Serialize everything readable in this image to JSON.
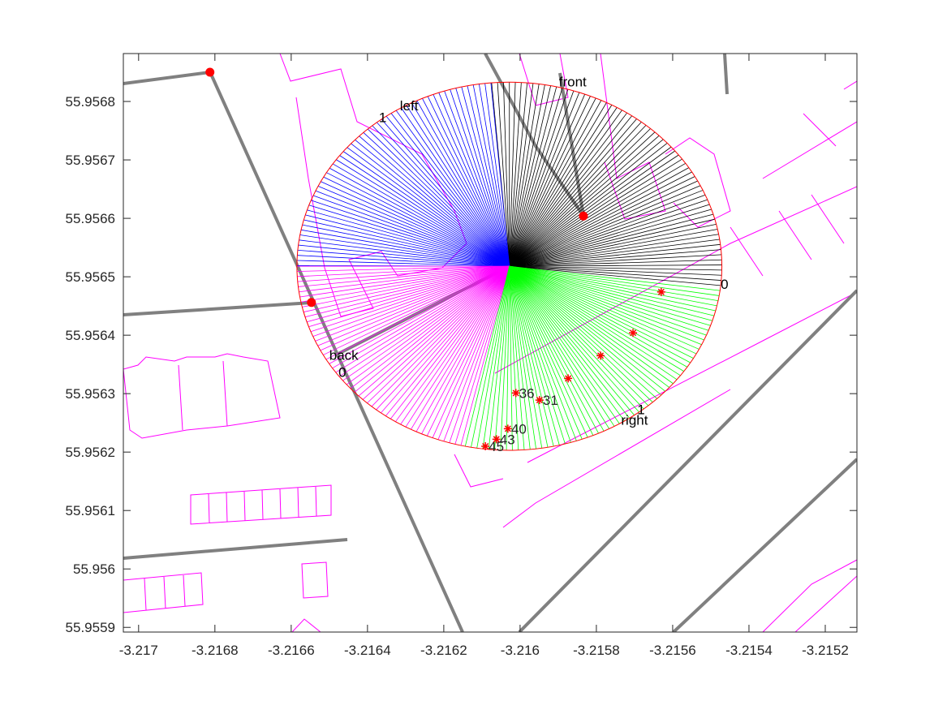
{
  "chart_data": {
    "type": "map",
    "xlim": [
      -3.21704,
      -3.215117
    ],
    "ylim": [
      55.955892,
      55.956882
    ],
    "xticks": [
      -3.217,
      -3.2168,
      -3.2166,
      -3.2164,
      -3.2162,
      -3.216,
      -3.2158,
      -3.2156,
      -3.2154,
      -3.2152
    ],
    "yticks": [
      55.9559,
      55.956,
      55.9561,
      55.9562,
      55.9563,
      55.9564,
      55.9565,
      55.9566,
      55.9567,
      55.9568
    ],
    "center": {
      "x": -3.216028,
      "y": 55.956518
    },
    "radius_x": 0.000557,
    "radius_y": 0.000315,
    "circle_color": "#ff0000",
    "sectors": [
      {
        "color": "#000000",
        "start": -6,
        "end": 95
      },
      {
        "color": "#0000ff",
        "start": 95,
        "end": 180
      },
      {
        "color": "#ff00ff",
        "start": 180,
        "end": 258
      },
      {
        "color": "#00ff00",
        "start": 258,
        "end": 354
      }
    ],
    "annotations": [
      {
        "text": "front",
        "x": -3.215862,
        "y": 55.956826
      },
      {
        "text": "left",
        "x": -3.216291,
        "y": 55.956785
      },
      {
        "text": "1",
        "x": -3.21636,
        "y": 55.956765
      },
      {
        "text": "back",
        "x": -3.216462,
        "y": 55.956358
      },
      {
        "text": "0",
        "x": -3.216466,
        "y": 55.956329
      },
      {
        "text": "right",
        "x": -3.2157,
        "y": 55.956247
      },
      {
        "text": "1",
        "x": -3.215683,
        "y": 55.956265
      },
      {
        "text": "0",
        "x": -3.215464,
        "y": 55.956479
      }
    ],
    "points": {
      "color": "#ff0000",
      "x": [
        -3.216091,
        -3.216062,
        -3.216032,
        -3.216011,
        -3.215949,
        -3.215874,
        -3.215789,
        -3.215704,
        -3.21563
      ],
      "y": [
        55.95621,
        55.956222,
        55.95624,
        55.956301,
        55.956289,
        55.956326,
        55.956365,
        55.956404,
        55.956474
      ],
      "labels": [
        "45",
        "43",
        "40",
        "36",
        "31",
        null,
        null,
        null,
        null
      ]
    },
    "nodes": {
      "color": "#ff0000",
      "x": [
        -3.216813,
        -3.216547,
        -3.215834
      ],
      "y": [
        55.95685,
        55.956456,
        55.956604
      ]
    }
  }
}
